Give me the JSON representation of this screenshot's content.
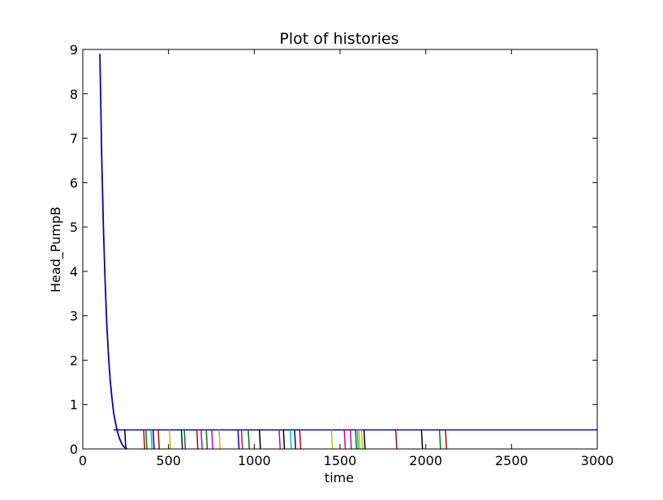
{
  "chart_data": {
    "type": "line",
    "title": "Plot of histories",
    "xlabel": "time",
    "ylabel": "Head_PumpB",
    "xlim": [
      0,
      3000
    ],
    "ylim": [
      0,
      9
    ],
    "xticks": [
      "0",
      "500",
      "1000",
      "1500",
      "2000",
      "2500",
      "3000"
    ],
    "yticks": [
      "0",
      "1",
      "2",
      "3",
      "4",
      "5",
      "6",
      "7",
      "8",
      "9"
    ],
    "grid": false,
    "decay": {
      "name": "",
      "color": "#0000bf",
      "x": [
        100,
        110,
        120,
        130,
        140,
        150,
        160,
        170,
        180,
        190,
        200,
        210,
        220,
        230,
        240,
        250,
        260
      ],
      "y": [
        8.9,
        6.7,
        5.0,
        3.8,
        2.8,
        2.1,
        1.55,
        1.15,
        0.82,
        0.6,
        0.42,
        0.28,
        0.18,
        0.1,
        0.05,
        0.02,
        0.0
      ]
    },
    "plateau": {
      "y": 0.43,
      "x_start": 180,
      "x_end": 3000,
      "color": "#0000bf"
    },
    "drops": [
      {
        "x": 245,
        "color": "#000000"
      },
      {
        "x": 355,
        "color": "#bf0000"
      },
      {
        "x": 368,
        "color": "#007f00"
      },
      {
        "x": 398,
        "color": "#00bfbf"
      },
      {
        "x": 410,
        "color": "#0000bf"
      },
      {
        "x": 440,
        "color": "#bf0000"
      },
      {
        "x": 505,
        "color": "#bfbf00"
      },
      {
        "x": 575,
        "color": "#0000bf"
      },
      {
        "x": 592,
        "color": "#007f00"
      },
      {
        "x": 665,
        "color": "#bf0000"
      },
      {
        "x": 690,
        "color": "#bf00bf"
      },
      {
        "x": 720,
        "color": "#007f00"
      },
      {
        "x": 752,
        "color": "#bf00bf"
      },
      {
        "x": 795,
        "color": "#bfbf00"
      },
      {
        "x": 905,
        "color": "#0000bf"
      },
      {
        "x": 925,
        "color": "#bf00bf"
      },
      {
        "x": 965,
        "color": "#007f00"
      },
      {
        "x": 1030,
        "color": "#000000"
      },
      {
        "x": 1145,
        "color": "#bf00bf"
      },
      {
        "x": 1170,
        "color": "#000000"
      },
      {
        "x": 1210,
        "color": "#00bfbf"
      },
      {
        "x": 1235,
        "color": "#0000bf"
      },
      {
        "x": 1265,
        "color": "#bf0000"
      },
      {
        "x": 1450,
        "color": "#bfbf00"
      },
      {
        "x": 1525,
        "color": "#bf00bf"
      },
      {
        "x": 1560,
        "color": "#bf00bf"
      },
      {
        "x": 1590,
        "color": "#007f00"
      },
      {
        "x": 1600,
        "color": "#00bfbf"
      },
      {
        "x": 1610,
        "color": "#bfbf00"
      },
      {
        "x": 1625,
        "color": "#bfbf00"
      },
      {
        "x": 1640,
        "color": "#000000"
      },
      {
        "x": 1825,
        "color": "#bf0000"
      },
      {
        "x": 1975,
        "color": "#000000"
      },
      {
        "x": 2080,
        "color": "#007f00"
      },
      {
        "x": 2115,
        "color": "#bf0000"
      }
    ]
  }
}
